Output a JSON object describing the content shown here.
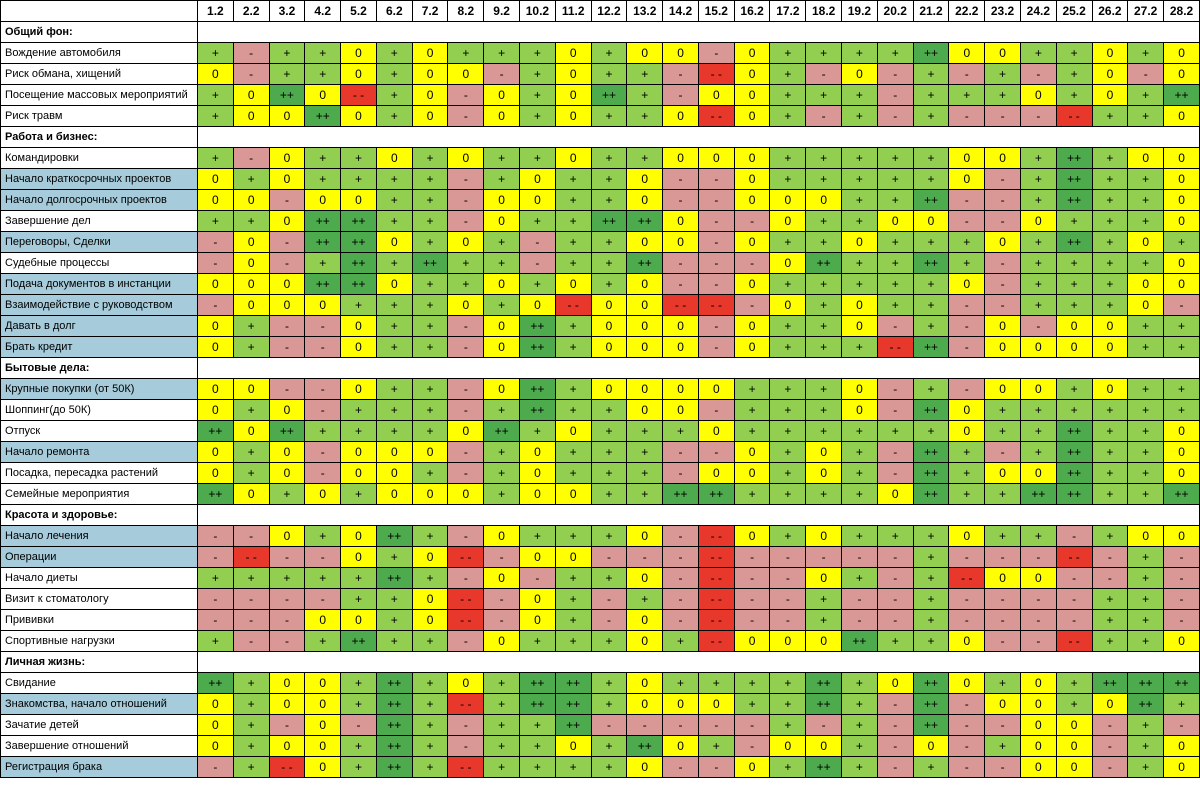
{
  "days": [
    "1.2",
    "2.2",
    "3.2",
    "4.2",
    "5.2",
    "6.2",
    "7.2",
    "8.2",
    "9.2",
    "10.2",
    "11.2",
    "12.2",
    "13.2",
    "14.2",
    "15.2",
    "16.2",
    "17.2",
    "18.2",
    "19.2",
    "20.2",
    "21.2",
    "22.2",
    "23.2",
    "24.2",
    "25.2",
    "26.2",
    "27.2",
    "28.2"
  ],
  "colors": {
    "pp": "#4daa4d",
    "p": "#92cf50",
    "z": "#ffff00",
    "m": "#d99795",
    "mm": "#e8382b"
  },
  "sections": [
    {
      "title": "Общий фон:",
      "rows": [
        {
          "label": "Вождение автомобиля",
          "highlight": false,
          "values": [
            "+",
            "-",
            "+",
            "+",
            "0",
            "+",
            "0",
            "+",
            "+",
            "+",
            "0",
            "+",
            "0",
            "0",
            "-",
            "0",
            "+",
            "+",
            "+",
            "+",
            "++",
            "0",
            "0",
            "+",
            "+",
            "0",
            "+",
            "0"
          ]
        },
        {
          "label": "Риск обмана, хищений",
          "highlight": false,
          "values": [
            "0",
            "-",
            "+",
            "+",
            "0",
            "+",
            "0",
            "0",
            "-",
            "+",
            "0",
            "+",
            "+",
            "-",
            "- -",
            "0",
            "+",
            "-",
            "0",
            "-",
            "+",
            "-",
            "+",
            "-",
            "+",
            "0",
            "-",
            "0"
          ]
        },
        {
          "label": "Посещение массовых мероприятий",
          "highlight": false,
          "values": [
            "+",
            "0",
            "++",
            "0",
            "- -",
            "+",
            "0",
            "-",
            "0",
            "+",
            "0",
            "++",
            "+",
            "-",
            "0",
            "0",
            "+",
            "+",
            "+",
            "-",
            "+",
            "+",
            "+",
            "0",
            "+",
            "0",
            "+",
            "++"
          ]
        },
        {
          "label": "Риск травм",
          "highlight": false,
          "values": [
            "+",
            "0",
            "0",
            "++",
            "0",
            "+",
            "0",
            "-",
            "0",
            "+",
            "0",
            "+",
            "+",
            "0",
            "- -",
            "0",
            "+",
            "-",
            "+",
            "-",
            "+",
            "-",
            "-",
            "-",
            "- -",
            "+",
            "+",
            "0"
          ]
        }
      ]
    },
    {
      "title": "Работа и бизнес:",
      "rows": [
        {
          "label": "Командировки",
          "highlight": false,
          "values": [
            "+",
            "-",
            "0",
            "+",
            "+",
            "0",
            "+",
            "0",
            "+",
            "+",
            "0",
            "+",
            "+",
            "0",
            "0",
            "0",
            "+",
            "+",
            "+",
            "+",
            "+",
            "0",
            "0",
            "+",
            "++",
            "+",
            "0",
            "0"
          ]
        },
        {
          "label": "Начало краткосрочных проектов",
          "highlight": true,
          "values": [
            "0",
            "+",
            "0",
            "+",
            "+",
            "+",
            "+",
            "-",
            "+",
            "0",
            "+",
            "+",
            "0",
            "-",
            "-",
            "0",
            "+",
            "+",
            "+",
            "+",
            "+",
            "0",
            "-",
            "+",
            "++",
            "+",
            "+",
            "0"
          ]
        },
        {
          "label": "Начало долгосрочных проектов",
          "highlight": true,
          "values": [
            "0",
            "0",
            "-",
            "0",
            "0",
            "+",
            "+",
            "-",
            "0",
            "0",
            "+",
            "+",
            "0",
            "-",
            "-",
            "0",
            "0",
            "0",
            "+",
            "+",
            "++",
            "-",
            "-",
            "+",
            "++",
            "+",
            "+",
            "0"
          ]
        },
        {
          "label": "Завершение дел",
          "highlight": false,
          "values": [
            "+",
            "+",
            "0",
            "++",
            "++",
            "+",
            "+",
            "-",
            "0",
            "+",
            "+",
            "++",
            "++",
            "0",
            "-",
            "-",
            "0",
            "+",
            "+",
            "0",
            "0",
            "-",
            "-",
            "0",
            "+",
            "+",
            "+",
            "0"
          ]
        },
        {
          "label": "Переговоры, Сделки",
          "highlight": true,
          "values": [
            "-",
            "0",
            "-",
            "++",
            "++",
            "0",
            "+",
            "0",
            "+",
            "-",
            "+",
            "+",
            "0",
            "0",
            "-",
            "0",
            "+",
            "+",
            "0",
            "+",
            "+",
            "+",
            "0",
            "+",
            "++",
            "+",
            "0",
            "+"
          ]
        },
        {
          "label": "Судебные процессы",
          "highlight": false,
          "values": [
            "-",
            "0",
            "-",
            "+",
            "++",
            "+",
            "++",
            "+",
            "+",
            "-",
            "+",
            "+",
            "++",
            "-",
            "-",
            "-",
            "0",
            "++",
            "+",
            "+",
            "++",
            "+",
            "-",
            "+",
            "+",
            "+",
            "+",
            "0"
          ]
        },
        {
          "label": "Подача документов в инстанции",
          "highlight": true,
          "values": [
            "0",
            "0",
            "0",
            "++",
            "++",
            "0",
            "+",
            "+",
            "0",
            "+",
            "0",
            "+",
            "0",
            "-",
            "-",
            "0",
            "+",
            "+",
            "+",
            "+",
            "+",
            "0",
            "-",
            "+",
            "+",
            "+",
            "0",
            "0"
          ]
        },
        {
          "label": "Взаимодействие с руководством",
          "highlight": true,
          "values": [
            "-",
            "0",
            "0",
            "0",
            "+",
            "+",
            "+",
            "0",
            "+",
            "0",
            "- -",
            "0",
            "0",
            "- -",
            "- -",
            "-",
            "0",
            "+",
            "0",
            "+",
            "+",
            "-",
            "-",
            "+",
            "+",
            "+",
            "0",
            "-"
          ]
        },
        {
          "label": "Давать в долг",
          "highlight": true,
          "values": [
            "0",
            "+",
            "-",
            "-",
            "0",
            "+",
            "+",
            "-",
            "0",
            "++",
            "+",
            "0",
            "0",
            "0",
            "-",
            "0",
            "+",
            "+",
            "0",
            "-",
            "+",
            "-",
            "0",
            "-",
            "0",
            "0",
            "+",
            "+"
          ]
        },
        {
          "label": "Брать кредит",
          "highlight": true,
          "values": [
            "0",
            "+",
            "-",
            "-",
            "0",
            "+",
            "+",
            "-",
            "0",
            "++",
            "+",
            "0",
            "0",
            "0",
            "-",
            "0",
            "+",
            "+",
            "+",
            "- -",
            "++",
            "-",
            "0",
            "0",
            "0",
            "0",
            "+",
            "+"
          ]
        }
      ]
    },
    {
      "title": "Бытовые дела:",
      "rows": [
        {
          "label": "Крупные покупки (от 50К)",
          "highlight": true,
          "values": [
            "0",
            "0",
            "-",
            "-",
            "0",
            "+",
            "+",
            "-",
            "0",
            "++",
            "+",
            "0",
            "0",
            "0",
            "0",
            "+",
            "+",
            "+",
            "0",
            "-",
            "+",
            "-",
            "0",
            "0",
            "+",
            "0",
            "+",
            "+"
          ]
        },
        {
          "label": "Шоппинг(до 50К)",
          "highlight": false,
          "values": [
            "0",
            "+",
            "0",
            "-",
            "+",
            "+",
            "+",
            "-",
            "+",
            "++",
            "+",
            "+",
            "0",
            "0",
            "-",
            "+",
            "+",
            "+",
            "0",
            "-",
            "++",
            "0",
            "+",
            "+",
            "+",
            "+",
            "+",
            "+"
          ]
        },
        {
          "label": "Отпуск",
          "highlight": false,
          "values": [
            "++",
            "0",
            "++",
            "+",
            "+",
            "+",
            "+",
            "0",
            "++",
            "+",
            "0",
            "+",
            "+",
            "+",
            "0",
            "+",
            "+",
            "+",
            "+",
            "+",
            "+",
            "0",
            "+",
            "+",
            "++",
            "+",
            "+",
            "0"
          ]
        },
        {
          "label": "Начало ремонта",
          "highlight": true,
          "values": [
            "0",
            "+",
            "0",
            "-",
            "0",
            "0",
            "0",
            "-",
            "+",
            "0",
            "+",
            "+",
            "+",
            "-",
            "-",
            "0",
            "+",
            "0",
            "+",
            "-",
            "++",
            "+",
            "-",
            "+",
            "++",
            "+",
            "+",
            "0"
          ]
        },
        {
          "label": "Посадка, пересадка растений",
          "highlight": false,
          "values": [
            "0",
            "+",
            "0",
            "-",
            "0",
            "0",
            "+",
            "-",
            "+",
            "0",
            "+",
            "+",
            "+",
            "-",
            "0",
            "0",
            "+",
            "0",
            "+",
            "-",
            "++",
            "+",
            "0",
            "0",
            "++",
            "+",
            "+",
            "0"
          ]
        },
        {
          "label": "Семейные мероприятия",
          "highlight": false,
          "values": [
            "++",
            "0",
            "+",
            "0",
            "+",
            "0",
            "0",
            "0",
            "+",
            "0",
            "0",
            "+",
            "+",
            "++",
            "++",
            "+",
            "+",
            "+",
            "+",
            "0",
            "++",
            "+",
            "+",
            "++",
            "++",
            "+",
            "+",
            "++"
          ]
        }
      ]
    },
    {
      "title": "Красота и здоровье:",
      "rows": [
        {
          "label": "Начало лечения",
          "highlight": true,
          "values": [
            "-",
            "-",
            "0",
            "+",
            "0",
            "++",
            "+",
            "-",
            "0",
            "+",
            "+",
            "+",
            "0",
            "-",
            "- -",
            "0",
            "+",
            "0",
            "+",
            "+",
            "+",
            "0",
            "+",
            "+",
            "-",
            "+",
            "0",
            "0"
          ]
        },
        {
          "label": "Операции",
          "highlight": true,
          "values": [
            "-",
            "- -",
            "-",
            "-",
            "0",
            "+",
            "0",
            "- -",
            "-",
            "0",
            "0",
            "-",
            "-",
            "-",
            "- -",
            "-",
            "-",
            "-",
            "-",
            "-",
            "+",
            "-",
            "-",
            "-",
            "- -",
            "-",
            "+",
            "-"
          ]
        },
        {
          "label": "Начало диеты",
          "highlight": false,
          "values": [
            "+",
            "+",
            "+",
            "+",
            "+",
            "++",
            "+",
            "-",
            "0",
            "-",
            "+",
            "+",
            "0",
            "-",
            "- -",
            "-",
            "-",
            "0",
            "+",
            "-",
            "+",
            "- -",
            "0",
            "0",
            "-",
            "-",
            "+",
            "-"
          ]
        },
        {
          "label": "Визит к стоматологу",
          "highlight": false,
          "values": [
            "-",
            "-",
            "-",
            "-",
            "+",
            "+",
            "0",
            "- -",
            "-",
            "0",
            "+",
            "-",
            "+",
            "-",
            "- -",
            "-",
            "-",
            "+",
            "-",
            "-",
            "+",
            "-",
            "-",
            "-",
            "-",
            "+",
            "+",
            "-"
          ]
        },
        {
          "label": "Прививки",
          "highlight": false,
          "values": [
            "-",
            "-",
            "-",
            "0",
            "0",
            "+",
            "0",
            "- -",
            "-",
            "0",
            "+",
            "-",
            "0",
            "-",
            "- -",
            "-",
            "-",
            "+",
            "-",
            "-",
            "+",
            "-",
            "-",
            "-",
            "-",
            "+",
            "+",
            "-"
          ]
        },
        {
          "label": "Спортивные нагрузки",
          "highlight": false,
          "values": [
            "+",
            "-",
            "-",
            "+",
            "++",
            "+",
            "+",
            "-",
            "0",
            "+",
            "+",
            "+",
            "0",
            "+",
            "- -",
            "0",
            "0",
            "0",
            "++",
            "+",
            "+",
            "0",
            "-",
            "-",
            "- -",
            "+",
            "+",
            "0"
          ]
        }
      ]
    },
    {
      "title": "Личная жизнь:",
      "rows": [
        {
          "label": "Свидание",
          "highlight": false,
          "values": [
            "++",
            "+",
            "0",
            "0",
            "+",
            "++",
            "+",
            "0",
            "+",
            "++",
            "++",
            "+",
            "0",
            "+",
            "+",
            "+",
            "+",
            "++",
            "+",
            "0",
            "++",
            "0",
            "+",
            "0",
            "+",
            "++",
            "++",
            "++"
          ]
        },
        {
          "label": "Знакомства, начало отношений",
          "highlight": true,
          "values": [
            "0",
            "+",
            "0",
            "0",
            "+",
            "++",
            "+",
            "- -",
            "+",
            "++",
            "++",
            "+",
            "0",
            "0",
            "0",
            "+",
            "+",
            "++",
            "+",
            "-",
            "++",
            "-",
            "0",
            "0",
            "+",
            "0",
            "++",
            "+"
          ]
        },
        {
          "label": "Зачатие детей",
          "highlight": false,
          "values": [
            "0",
            "+",
            "-",
            "0",
            "-",
            "++",
            "+",
            "-",
            "+",
            "+",
            "++",
            "-",
            "-",
            "-",
            "-",
            "-",
            "+",
            "-",
            "+",
            "-",
            "++",
            "-",
            "-",
            "0",
            "0",
            "-",
            "+",
            "-"
          ]
        },
        {
          "label": "Завершение отношений",
          "highlight": false,
          "values": [
            "0",
            "+",
            "0",
            "0",
            "+",
            "++",
            "+",
            "-",
            "+",
            "+",
            "0",
            "+",
            "++",
            "0",
            "+",
            "-",
            "0",
            "0",
            "+",
            "-",
            "0",
            "-",
            "+",
            "0",
            "0",
            "-",
            "+",
            "0"
          ]
        },
        {
          "label": "Регистрация брака",
          "highlight": true,
          "values": [
            "-",
            "+",
            "- -",
            "0",
            "+",
            "++",
            "+",
            "- -",
            "+",
            "+",
            "+",
            "+",
            "0",
            "-",
            "-",
            "0",
            "+",
            "++",
            "+",
            "-",
            "+",
            "-",
            "-",
            "0",
            "0",
            "-",
            "+",
            "0"
          ]
        }
      ]
    }
  ]
}
